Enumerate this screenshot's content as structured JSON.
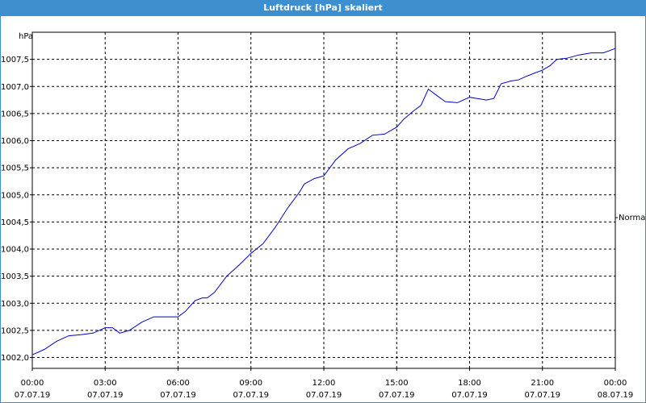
{
  "window": {
    "title": "Luftdruck [hPa] skaliert"
  },
  "chart_data": {
    "type": "line",
    "title": "Luftdruck [hPa] skaliert",
    "ylabel": "hPa",
    "xlabel": "",
    "ylim": [
      1001.8,
      1008.0
    ],
    "xlim": [
      0,
      24
    ],
    "grid": true,
    "legend": "right",
    "y_ticks": [
      "1002,0",
      "1002,5",
      "1003,0",
      "1003,5",
      "1004,0",
      "1004,5",
      "1005,0",
      "1005,5",
      "1006,0",
      "1006,5",
      "1007,0",
      "1007,5"
    ],
    "y_tick_values": [
      1002.0,
      1002.5,
      1003.0,
      1003.5,
      1004.0,
      1004.5,
      1005.0,
      1005.5,
      1006.0,
      1006.5,
      1007.0,
      1007.5
    ],
    "x_ticks": [
      {
        "time": "00:00",
        "date": "07.07.19"
      },
      {
        "time": "03:00",
        "date": "07.07.19"
      },
      {
        "time": "06:00",
        "date": "07.07.19"
      },
      {
        "time": "09:00",
        "date": "07.07.19"
      },
      {
        "time": "12:00",
        "date": "07.07.19"
      },
      {
        "time": "15:00",
        "date": "07.07.19"
      },
      {
        "time": "18:00",
        "date": "07.07.19"
      },
      {
        "time": "21:00",
        "date": "07.07.19"
      },
      {
        "time": "00:00",
        "date": "08.07.19"
      }
    ],
    "series": [
      {
        "name": "Normal",
        "color": "#0000cc",
        "x": [
          0.0,
          0.5,
          1.0,
          1.5,
          2.0,
          2.5,
          3.0,
          3.3,
          3.6,
          4.0,
          4.5,
          5.0,
          5.5,
          6.0,
          6.3,
          6.7,
          7.0,
          7.2,
          7.5,
          8.0,
          8.5,
          9.0,
          9.5,
          10.0,
          10.5,
          11.0,
          11.2,
          11.6,
          12.0,
          12.5,
          13.0,
          13.5,
          14.0,
          14.5,
          15.0,
          15.3,
          15.7,
          16.0,
          16.3,
          16.6,
          17.0,
          17.5,
          18.0,
          18.3,
          18.7,
          19.0,
          19.3,
          19.7,
          20.0,
          20.3,
          20.7,
          21.0,
          21.3,
          21.6,
          22.0,
          22.5,
          23.0,
          23.5,
          24.0
        ],
        "values": [
          1002.05,
          1002.15,
          1002.3,
          1002.4,
          1002.42,
          1002.45,
          1002.55,
          1002.55,
          1002.45,
          1002.5,
          1002.65,
          1002.75,
          1002.75,
          1002.75,
          1002.85,
          1003.05,
          1003.1,
          1003.1,
          1003.2,
          1003.5,
          1003.7,
          1003.92,
          1004.1,
          1004.4,
          1004.75,
          1005.05,
          1005.2,
          1005.3,
          1005.35,
          1005.65,
          1005.85,
          1005.95,
          1006.1,
          1006.12,
          1006.25,
          1006.4,
          1006.55,
          1006.65,
          1006.95,
          1006.85,
          1006.72,
          1006.7,
          1006.8,
          1006.78,
          1006.75,
          1006.78,
          1007.05,
          1007.1,
          1007.12,
          1007.18,
          1007.25,
          1007.3,
          1007.38,
          1007.5,
          1007.52,
          1007.58,
          1007.62,
          1007.62,
          1007.7
        ]
      }
    ]
  }
}
